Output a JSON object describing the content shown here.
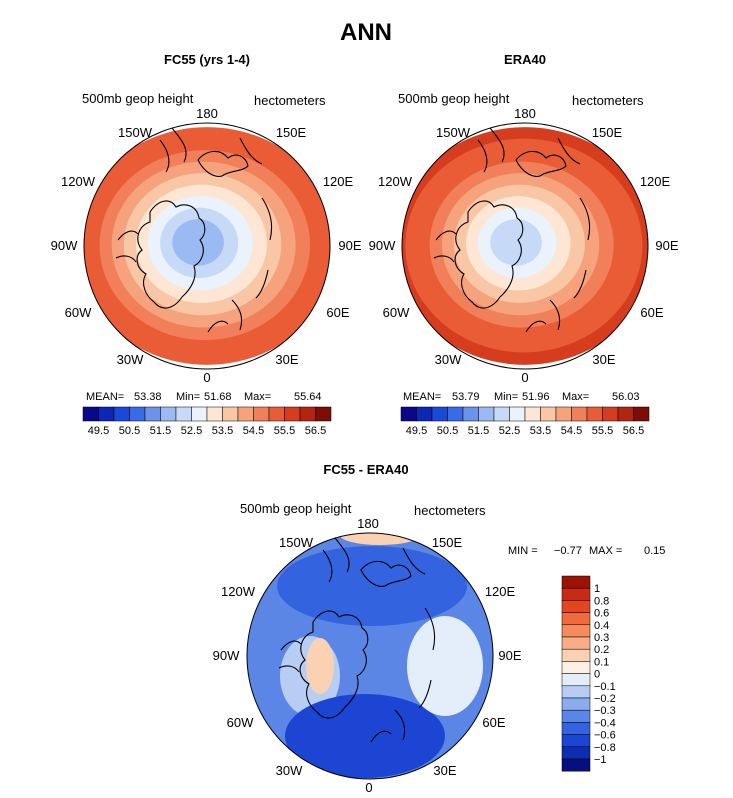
{
  "figure_title": "ANN",
  "chart_data": [
    {
      "type": "heatmap",
      "projection": "north-polar-stereographic",
      "title": "FC55 (yrs 1-4)",
      "field_label": "500mb geop height",
      "units": "hectometers",
      "lon_labels": {
        "top": "180",
        "left_top": "150W",
        "right_top": "150E",
        "left_upper": "120W",
        "right_upper": "120E",
        "left": "90W",
        "right": "90E",
        "left_lower": "60W",
        "right_lower": "60E",
        "left_bottom": "30W",
        "right_bottom": "30E",
        "bottom": "0"
      },
      "stats": {
        "mean_label": "MEAN=",
        "mean": "53.38",
        "min_label": "Min=",
        "min": "51.68",
        "max_label": "Max=",
        "max": "55.64"
      },
      "colorbar_ticks": [
        "49.5",
        "50.5",
        "51.5",
        "52.5",
        "53.5",
        "54.5",
        "55.5",
        "56.5"
      ],
      "contour_levels": [
        49.5,
        50,
        50.5,
        51,
        51.5,
        52,
        52.5,
        53,
        53.5,
        54,
        54.5,
        55,
        55.5,
        56,
        56.5
      ],
      "colors": [
        "#08088a",
        "#0c27b5",
        "#1a48d8",
        "#3b6ae8",
        "#6b93ec",
        "#9bb9f2",
        "#c6d9f7",
        "#eaf2fd",
        "#fde7d4",
        "#f9c6a6",
        "#f6a27c",
        "#f17f59",
        "#ea5c35",
        "#d63d1f",
        "#b52411",
        "#7d0d05"
      ],
      "zone_values": [
        55.3,
        55.0,
        54.6,
        54.1,
        53.6,
        53.1,
        52.6,
        52.2,
        51.8
      ]
    },
    {
      "type": "heatmap",
      "projection": "north-polar-stereographic",
      "title": "ERA40",
      "field_label": "500mb geop height",
      "units": "hectometers",
      "lon_labels": {
        "top": "180",
        "left_top": "150W",
        "right_top": "150E",
        "left_upper": "120W",
        "right_upper": "120E",
        "left": "90W",
        "right": "90E",
        "left_lower": "60W",
        "right_lower": "60E",
        "left_bottom": "30W",
        "right_bottom": "30E",
        "bottom": "0"
      },
      "stats": {
        "mean_label": "MEAN=",
        "mean": "53.79",
        "min_label": "Min=",
        "min": "51.96",
        "max_label": "Max=",
        "max": "56.03"
      },
      "colorbar_ticks": [
        "49.5",
        "50.5",
        "51.5",
        "52.5",
        "53.5",
        "54.5",
        "55.5",
        "56.5"
      ],
      "contour_levels": [
        49.5,
        50,
        50.5,
        51,
        51.5,
        52,
        52.5,
        53,
        53.5,
        54,
        54.5,
        55,
        55.5,
        56,
        56.5
      ],
      "colors": [
        "#08088a",
        "#0c27b5",
        "#1a48d8",
        "#3b6ae8",
        "#6b93ec",
        "#9bb9f2",
        "#c6d9f7",
        "#eaf2fd",
        "#fde7d4",
        "#f9c6a6",
        "#f6a27c",
        "#f17f59",
        "#ea5c35",
        "#d63d1f",
        "#b52411",
        "#7d0d05"
      ],
      "zone_values": [
        55.7,
        55.4,
        55.0,
        54.5,
        54.0,
        53.5,
        53.0,
        52.6,
        52.1
      ]
    },
    {
      "type": "heatmap",
      "projection": "north-polar-stereographic",
      "title": "FC55 - ERA40",
      "field_label": "500mb geop height",
      "units": "hectometers",
      "lon_labels": {
        "top": "180",
        "left_top": "150W",
        "right_top": "150E",
        "left_upper": "120W",
        "right_upper": "120E",
        "left": "90W",
        "right": "90E",
        "left_lower": "60W",
        "right_lower": "60E",
        "left_bottom": "30W",
        "right_bottom": "30E",
        "bottom": "0"
      },
      "stats": {
        "min_label": "MIN =",
        "min": "−0.77",
        "max_label": "MAX =",
        "max": "0.15"
      },
      "colorbar_ticks": [
        "1",
        "0.8",
        "0.6",
        "0.4",
        "0.3",
        "0.2",
        "0.1",
        "0",
        "−0.1",
        "−0.2",
        "−0.3",
        "−0.4",
        "−0.6",
        "−0.8",
        "−1"
      ],
      "colors_top_to_bottom": [
        "#9a1305",
        "#c92a13",
        "#e4471f",
        "#ef6a3c",
        "#f48c5e",
        "#f7ae86",
        "#fbd1b4",
        "#fef0e4",
        "#e4eefb",
        "#b7cdf3",
        "#8aabec",
        "#5b86e6",
        "#3463e0",
        "#1c45d4",
        "#0e2cb0",
        "#060e80"
      ],
      "background_value": -0.35,
      "regions": [
        {
          "name": "north-pacific-low",
          "value": -0.6
        },
        {
          "name": "north-atlantic-low",
          "value": -0.75
        },
        {
          "name": "eurasia-patch",
          "value": -0.05
        },
        {
          "name": "arctic-ridge",
          "value": 0.1
        },
        {
          "name": "pacific-rim",
          "value": 0.12
        },
        {
          "name": "canada-patch",
          "value": -0.2
        }
      ]
    }
  ]
}
